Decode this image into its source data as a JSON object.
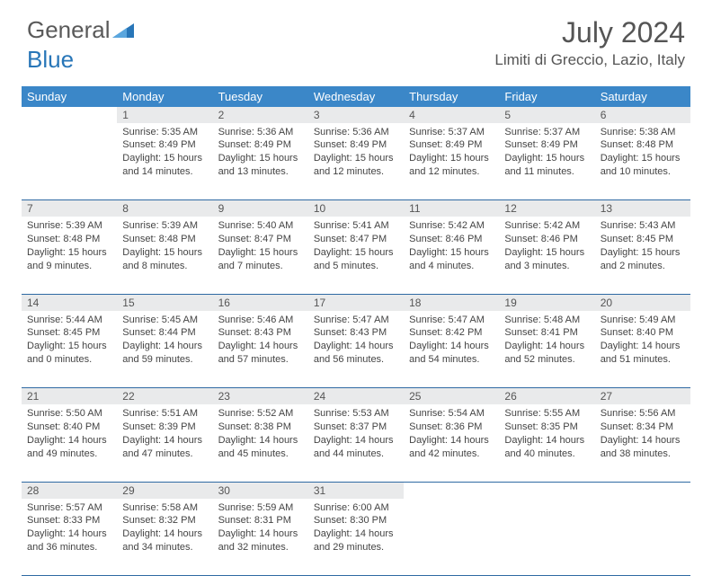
{
  "brand": {
    "part1": "General",
    "part2": "Blue"
  },
  "title": "July 2024",
  "location": "Limiti di Greccio, Lazio, Italy",
  "colors": {
    "header_bg": "#3b87c8",
    "header_text": "#ffffff",
    "daynum_bg": "#e9eaeb",
    "border": "#2f6aa3",
    "text": "#444444",
    "brand_gray": "#5a5a5a",
    "brand_blue": "#2876b8"
  },
  "weekdays": [
    "Sunday",
    "Monday",
    "Tuesday",
    "Wednesday",
    "Thursday",
    "Friday",
    "Saturday"
  ],
  "weeks": [
    {
      "nums": [
        "",
        "1",
        "2",
        "3",
        "4",
        "5",
        "6"
      ],
      "cells": [
        {
          "sunrise": "",
          "sunset": "",
          "daylight": ""
        },
        {
          "sunrise": "Sunrise: 5:35 AM",
          "sunset": "Sunset: 8:49 PM",
          "daylight": "Daylight: 15 hours and 14 minutes."
        },
        {
          "sunrise": "Sunrise: 5:36 AM",
          "sunset": "Sunset: 8:49 PM",
          "daylight": "Daylight: 15 hours and 13 minutes."
        },
        {
          "sunrise": "Sunrise: 5:36 AM",
          "sunset": "Sunset: 8:49 PM",
          "daylight": "Daylight: 15 hours and 12 minutes."
        },
        {
          "sunrise": "Sunrise: 5:37 AM",
          "sunset": "Sunset: 8:49 PM",
          "daylight": "Daylight: 15 hours and 12 minutes."
        },
        {
          "sunrise": "Sunrise: 5:37 AM",
          "sunset": "Sunset: 8:49 PM",
          "daylight": "Daylight: 15 hours and 11 minutes."
        },
        {
          "sunrise": "Sunrise: 5:38 AM",
          "sunset": "Sunset: 8:48 PM",
          "daylight": "Daylight: 15 hours and 10 minutes."
        }
      ]
    },
    {
      "nums": [
        "7",
        "8",
        "9",
        "10",
        "11",
        "12",
        "13"
      ],
      "cells": [
        {
          "sunrise": "Sunrise: 5:39 AM",
          "sunset": "Sunset: 8:48 PM",
          "daylight": "Daylight: 15 hours and 9 minutes."
        },
        {
          "sunrise": "Sunrise: 5:39 AM",
          "sunset": "Sunset: 8:48 PM",
          "daylight": "Daylight: 15 hours and 8 minutes."
        },
        {
          "sunrise": "Sunrise: 5:40 AM",
          "sunset": "Sunset: 8:47 PM",
          "daylight": "Daylight: 15 hours and 7 minutes."
        },
        {
          "sunrise": "Sunrise: 5:41 AM",
          "sunset": "Sunset: 8:47 PM",
          "daylight": "Daylight: 15 hours and 5 minutes."
        },
        {
          "sunrise": "Sunrise: 5:42 AM",
          "sunset": "Sunset: 8:46 PM",
          "daylight": "Daylight: 15 hours and 4 minutes."
        },
        {
          "sunrise": "Sunrise: 5:42 AM",
          "sunset": "Sunset: 8:46 PM",
          "daylight": "Daylight: 15 hours and 3 minutes."
        },
        {
          "sunrise": "Sunrise: 5:43 AM",
          "sunset": "Sunset: 8:45 PM",
          "daylight": "Daylight: 15 hours and 2 minutes."
        }
      ]
    },
    {
      "nums": [
        "14",
        "15",
        "16",
        "17",
        "18",
        "19",
        "20"
      ],
      "cells": [
        {
          "sunrise": "Sunrise: 5:44 AM",
          "sunset": "Sunset: 8:45 PM",
          "daylight": "Daylight: 15 hours and 0 minutes."
        },
        {
          "sunrise": "Sunrise: 5:45 AM",
          "sunset": "Sunset: 8:44 PM",
          "daylight": "Daylight: 14 hours and 59 minutes."
        },
        {
          "sunrise": "Sunrise: 5:46 AM",
          "sunset": "Sunset: 8:43 PM",
          "daylight": "Daylight: 14 hours and 57 minutes."
        },
        {
          "sunrise": "Sunrise: 5:47 AM",
          "sunset": "Sunset: 8:43 PM",
          "daylight": "Daylight: 14 hours and 56 minutes."
        },
        {
          "sunrise": "Sunrise: 5:47 AM",
          "sunset": "Sunset: 8:42 PM",
          "daylight": "Daylight: 14 hours and 54 minutes."
        },
        {
          "sunrise": "Sunrise: 5:48 AM",
          "sunset": "Sunset: 8:41 PM",
          "daylight": "Daylight: 14 hours and 52 minutes."
        },
        {
          "sunrise": "Sunrise: 5:49 AM",
          "sunset": "Sunset: 8:40 PM",
          "daylight": "Daylight: 14 hours and 51 minutes."
        }
      ]
    },
    {
      "nums": [
        "21",
        "22",
        "23",
        "24",
        "25",
        "26",
        "27"
      ],
      "cells": [
        {
          "sunrise": "Sunrise: 5:50 AM",
          "sunset": "Sunset: 8:40 PM",
          "daylight": "Daylight: 14 hours and 49 minutes."
        },
        {
          "sunrise": "Sunrise: 5:51 AM",
          "sunset": "Sunset: 8:39 PM",
          "daylight": "Daylight: 14 hours and 47 minutes."
        },
        {
          "sunrise": "Sunrise: 5:52 AM",
          "sunset": "Sunset: 8:38 PM",
          "daylight": "Daylight: 14 hours and 45 minutes."
        },
        {
          "sunrise": "Sunrise: 5:53 AM",
          "sunset": "Sunset: 8:37 PM",
          "daylight": "Daylight: 14 hours and 44 minutes."
        },
        {
          "sunrise": "Sunrise: 5:54 AM",
          "sunset": "Sunset: 8:36 PM",
          "daylight": "Daylight: 14 hours and 42 minutes."
        },
        {
          "sunrise": "Sunrise: 5:55 AM",
          "sunset": "Sunset: 8:35 PM",
          "daylight": "Daylight: 14 hours and 40 minutes."
        },
        {
          "sunrise": "Sunrise: 5:56 AM",
          "sunset": "Sunset: 8:34 PM",
          "daylight": "Daylight: 14 hours and 38 minutes."
        }
      ]
    },
    {
      "nums": [
        "28",
        "29",
        "30",
        "31",
        "",
        "",
        ""
      ],
      "cells": [
        {
          "sunrise": "Sunrise: 5:57 AM",
          "sunset": "Sunset: 8:33 PM",
          "daylight": "Daylight: 14 hours and 36 minutes."
        },
        {
          "sunrise": "Sunrise: 5:58 AM",
          "sunset": "Sunset: 8:32 PM",
          "daylight": "Daylight: 14 hours and 34 minutes."
        },
        {
          "sunrise": "Sunrise: 5:59 AM",
          "sunset": "Sunset: 8:31 PM",
          "daylight": "Daylight: 14 hours and 32 minutes."
        },
        {
          "sunrise": "Sunrise: 6:00 AM",
          "sunset": "Sunset: 8:30 PM",
          "daylight": "Daylight: 14 hours and 29 minutes."
        },
        {
          "sunrise": "",
          "sunset": "",
          "daylight": ""
        },
        {
          "sunrise": "",
          "sunset": "",
          "daylight": ""
        },
        {
          "sunrise": "",
          "sunset": "",
          "daylight": ""
        }
      ]
    }
  ]
}
